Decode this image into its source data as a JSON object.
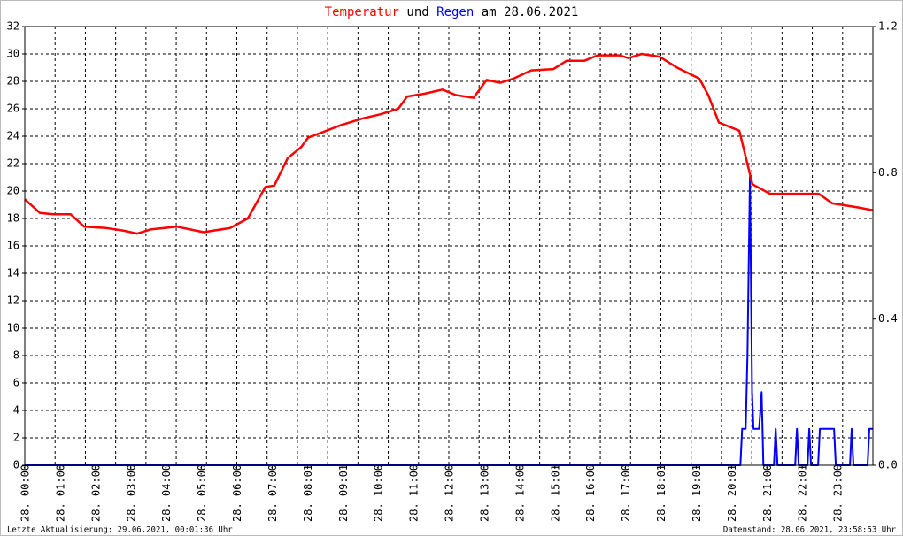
{
  "chart_data": {
    "type": "line",
    "title_parts": [
      "Temperatur",
      "und",
      "Regen",
      "am 28.06.2021"
    ],
    "xlim": [
      0,
      24
    ],
    "xticks": [
      {
        "value": 0,
        "label": "28. 00:00"
      },
      {
        "value": 1,
        "label": "28. 01:00"
      },
      {
        "value": 2,
        "label": "28. 02:00"
      },
      {
        "value": 3,
        "label": "28. 03:00"
      },
      {
        "value": 4,
        "label": "28. 04:00"
      },
      {
        "value": 5,
        "label": "28. 05:00"
      },
      {
        "value": 6,
        "label": "28. 06:00"
      },
      {
        "value": 7,
        "label": "28. 07:00"
      },
      {
        "value": 8,
        "label": "28. 08:01"
      },
      {
        "value": 9,
        "label": "28. 09:01"
      },
      {
        "value": 10,
        "label": "28. 10:00"
      },
      {
        "value": 11,
        "label": "28. 11:00"
      },
      {
        "value": 12,
        "label": "28. 12:00"
      },
      {
        "value": 13,
        "label": "28. 13:00"
      },
      {
        "value": 14,
        "label": "28. 14:00"
      },
      {
        "value": 15,
        "label": "28. 15:01"
      },
      {
        "value": 16,
        "label": "28. 16:00"
      },
      {
        "value": 17,
        "label": "28. 17:00"
      },
      {
        "value": 18,
        "label": "28. 18:01"
      },
      {
        "value": 19,
        "label": "28. 19:01"
      },
      {
        "value": 20,
        "label": "28. 20:01"
      },
      {
        "value": 21,
        "label": "28. 21:00"
      },
      {
        "value": 22,
        "label": "28. 22:01"
      },
      {
        "value": 23,
        "label": "28. 23:00"
      }
    ],
    "ylim": [
      0,
      32
    ],
    "yticks": [
      0,
      2,
      4,
      6,
      8,
      10,
      12,
      14,
      16,
      18,
      20,
      22,
      24,
      26,
      28,
      30,
      32
    ],
    "y2lim": [
      0,
      1.2
    ],
    "y2ticks": [
      {
        "value": 0,
        "label": "0.0"
      },
      {
        "value": 0.4,
        "label": "0.4"
      },
      {
        "value": 0.8,
        "label": "0.8"
      },
      {
        "value": 1.2,
        "label": "1.2"
      }
    ],
    "grid": true,
    "series": [
      {
        "name": "Temperatur",
        "color": "#ff0000",
        "x": [
          0,
          0.43,
          0.8,
          1.3,
          1.68,
          2.3,
          2.81,
          3.18,
          3.56,
          4.31,
          5.06,
          5.81,
          6.31,
          6.81,
          7.06,
          7.44,
          7.82,
          8.02,
          8.44,
          8.94,
          9.57,
          10.07,
          10.57,
          10.82,
          11.32,
          11.82,
          12.2,
          12.7,
          13.07,
          13.45,
          13.83,
          14.33,
          14.96,
          15.33,
          15.83,
          16.21,
          16.83,
          17.08,
          17.46,
          17.96,
          18.46,
          19.09,
          19.34,
          19.64,
          20.22,
          20.59,
          21.09,
          21.84,
          22.47,
          22.85,
          23.6,
          24.0
        ],
        "values": [
          19.4,
          18.4,
          18.3,
          18.3,
          17.4,
          17.3,
          17.1,
          16.9,
          17.2,
          17.4,
          17.0,
          17.3,
          18.0,
          20.3,
          20.4,
          22.4,
          23.2,
          23.9,
          24.3,
          24.8,
          25.3,
          25.6,
          26.0,
          26.9,
          27.1,
          27.4,
          27.0,
          26.8,
          28.1,
          27.9,
          28.2,
          28.8,
          28.9,
          29.5,
          29.5,
          29.9,
          29.9,
          29.7,
          30.0,
          29.8,
          29.0,
          28.2,
          27.0,
          25.0,
          24.4,
          20.5,
          19.8,
          19.8,
          19.8,
          19.1,
          18.8,
          18.6
        ]
      },
      {
        "name": "Regen",
        "color": "#0000ff",
        "axis": "y2",
        "x": [
          0,
          20.25,
          20.3,
          20.4,
          20.45,
          20.52,
          20.58,
          20.62,
          20.7,
          20.78,
          20.85,
          20.9,
          21.2,
          21.25,
          21.3,
          21.8,
          21.85,
          21.9,
          22.15,
          22.2,
          22.25,
          22.45,
          22.5,
          22.9,
          22.95,
          23.35,
          23.4,
          23.45,
          23.85,
          23.9,
          24.0
        ],
        "values": [
          0,
          0,
          0.1,
          0.1,
          0.3,
          0.79,
          0.2,
          0.1,
          0.1,
          0.1,
          0.2,
          0,
          0,
          0.1,
          0,
          0,
          0.1,
          0,
          0,
          0.1,
          0,
          0,
          0.1,
          0.1,
          0,
          0,
          0.1,
          0,
          0,
          0.1,
          0.1
        ]
      }
    ],
    "footer_left": "Letzte Aktualisierung: 29.06.2021, 00:01:36 Uhr",
    "footer_right": "Datenstand: 28.06.2021, 23:58:53 Uhr"
  }
}
